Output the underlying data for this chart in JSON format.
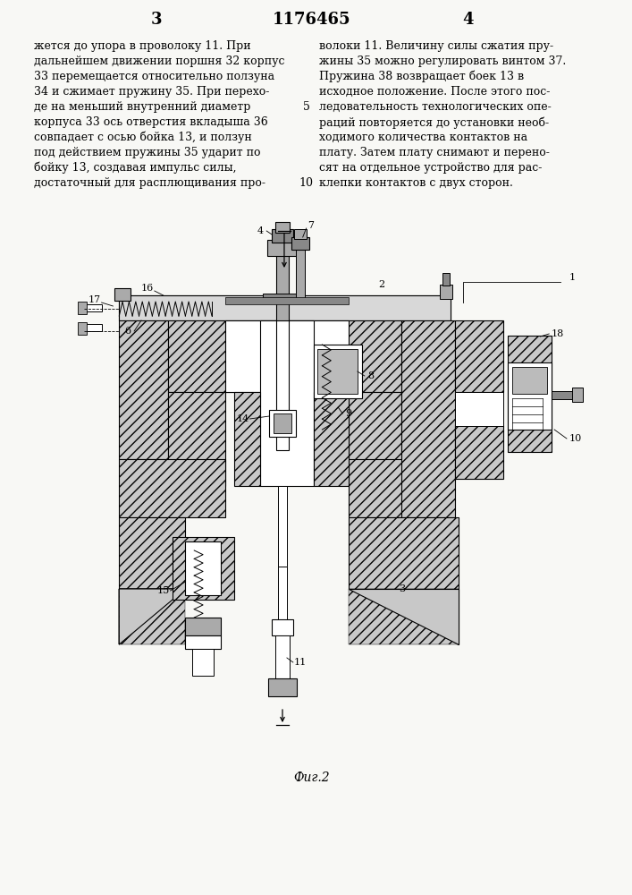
{
  "background_color": "#f8f8f5",
  "page_number_left": "3",
  "patent_number": "1176465",
  "page_number_right": "4",
  "left_column_text": [
    "жется до упора в проволоку 11. При",
    "дальнейшем движении поршня 32 корпус",
    "33 перемещается относительно ползуна",
    "34 и сжимает пружину 35. При перехо-",
    "де на меньший внутренний диаметр",
    "корпуса 33 ось отверстия вкладыша 36",
    "совпадает с осью бойка 13, и ползун",
    "под действием пружины 35 ударит по",
    "бойку 13, создавая импульс силы,",
    "достаточный для расплющивания про-"
  ],
  "right_column_text": [
    "волоки 11. Величину силы сжатия пру-",
    "жины 35 можно регулировать винтом 37.",
    "Пружина 38 возвращает боек 13 в",
    "исходное положение. После этого пос-",
    "ледовательность технологических опе-",
    "раций повторяется до установки необ-",
    "ходимого количества контактов на",
    "плату. Затем плату снимают и перено-",
    "сят на отдельное устройство для рас-",
    "клепки контактов с двух сторон."
  ],
  "fig_label": "Фиг.2"
}
